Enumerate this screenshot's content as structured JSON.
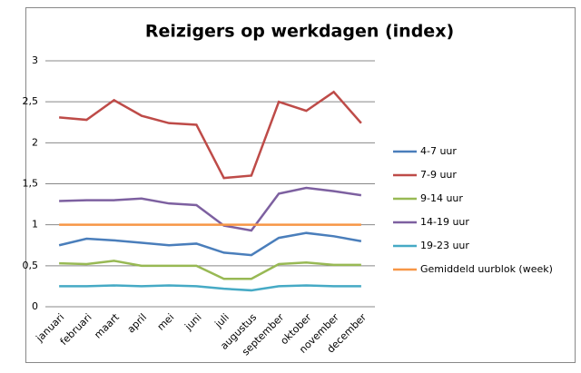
{
  "chart_data": {
    "type": "line",
    "title": "Reizigers op werkdagen (index)",
    "categories": [
      "januari",
      "februari",
      "maart",
      "april",
      "mei",
      "juni",
      "juli",
      "augustus",
      "september",
      "oktober",
      "november",
      "december"
    ],
    "series": [
      {
        "name": "4-7 uur",
        "color": "#4a7ebb",
        "values": [
          0.75,
          0.83,
          0.81,
          0.78,
          0.75,
          0.77,
          0.66,
          0.63,
          0.84,
          0.9,
          0.86,
          0.8
        ]
      },
      {
        "name": "7-9 uur",
        "color": "#be4b48",
        "values": [
          2.31,
          2.28,
          2.52,
          2.33,
          2.24,
          2.22,
          1.57,
          1.6,
          2.5,
          2.39,
          2.62,
          2.24
        ]
      },
      {
        "name": "9-14 uur",
        "color": "#98b954",
        "values": [
          0.53,
          0.52,
          0.56,
          0.5,
          0.5,
          0.5,
          0.34,
          0.34,
          0.52,
          0.54,
          0.51,
          0.51
        ]
      },
      {
        "name": "14-19 uur",
        "color": "#7d60a0",
        "values": [
          1.29,
          1.3,
          1.3,
          1.32,
          1.26,
          1.24,
          0.99,
          0.93,
          1.38,
          1.45,
          1.41,
          1.36
        ]
      },
      {
        "name": "19-23 uur",
        "color": "#46aac5",
        "values": [
          0.25,
          0.25,
          0.26,
          0.25,
          0.26,
          0.25,
          0.22,
          0.2,
          0.25,
          0.26,
          0.25,
          0.25
        ]
      },
      {
        "name": "Gemiddeld uurblok (week)",
        "color": "#f79646",
        "values": [
          1,
          1,
          1,
          1,
          1,
          1,
          1,
          1,
          1,
          1,
          1,
          1
        ]
      }
    ],
    "ylim": [
      0,
      3
    ],
    "yticks": [
      0,
      {
        "value": 0.5,
        "label": "0,5"
      },
      1,
      {
        "value": 1.5,
        "label": "1,5"
      },
      2,
      {
        "value": 2.5,
        "label": "2,5"
      },
      3
    ],
    "grid": true,
    "legend": "right"
  }
}
